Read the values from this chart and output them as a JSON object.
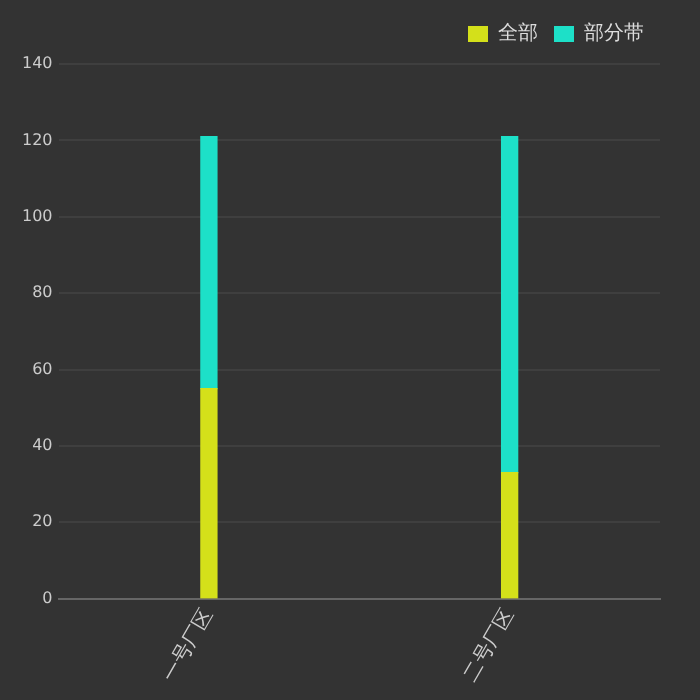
{
  "chart_data": {
    "type": "bar",
    "categories": [
      "一号厂区",
      "二号厂区"
    ],
    "stacked": true,
    "series": [
      {
        "name": "全部",
        "color": "#d4e01a",
        "values": [
          55,
          33
        ]
      },
      {
        "name": "部分带",
        "color": "#1de0c8",
        "values": [
          66,
          88
        ]
      }
    ],
    "ylim": [
      0,
      140
    ],
    "yticks": [
      0,
      20,
      40,
      60,
      80,
      100,
      120,
      140
    ],
    "grid": "y",
    "legend": "top right"
  }
}
